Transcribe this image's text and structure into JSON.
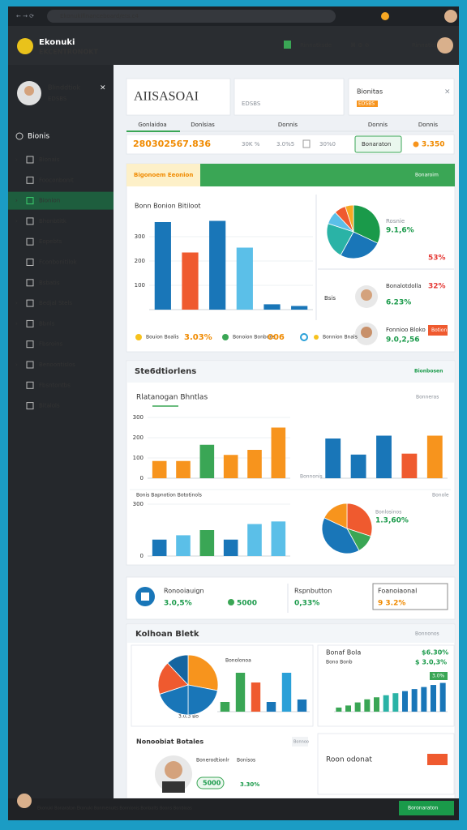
{
  "browser": {
    "address": "Ekonukifinanceboard/ets.c4"
  },
  "header": {
    "brand": "Ekonuki",
    "brand_sub": "EKCENTRONOKT",
    "nav_item": "Rinnatksde"
  },
  "sidebar": {
    "profile_name": "Blinddtiok",
    "profile_role": "EDSBS",
    "section": "Bionis",
    "items": [
      "Bionais",
      "Fooconbonit",
      "Bionion",
      "Bhonbtitk",
      "Eopebts",
      "Fconbonitilok",
      "Bsbatis",
      "Bedjal Stels",
      "Bbnls",
      "Fbsroins",
      "Benoontislos",
      "Fbsntontbs",
      "Bitalols"
    ]
  },
  "top": {
    "title": "AIISASOAI",
    "title_sub": "EDSBS",
    "card_title": "Bionitas",
    "card_sub": "EDSBS",
    "tabs": [
      "Gonlaidoa",
      "Donlsias",
      "Donnis",
      "Donnis",
      "Donnis"
    ],
    "total": "280302567.836",
    "stats": [
      "30K %",
      "3.0%5",
      "30%0"
    ],
    "button": "Bonaraton",
    "extra": "3.350"
  },
  "overview": {
    "tag": "Bigonoem Eeonion",
    "action": "Bonaroim",
    "chart_title": "Bonn Bonion Bitiloot",
    "pie_label": "Rosnie",
    "pie_value": "9.1,6%",
    "pie_change": "53%",
    "row1": {
      "label": "Bsis",
      "name": "Bonalotdolla",
      "value": "6.23%",
      "change": "32%"
    },
    "row2": {
      "name": "Fonnioo Bloko",
      "value": "9.0,2,56",
      "button": "Botion"
    },
    "legend": [
      "Bouion Boalis",
      "3.03%",
      "Bonoion Bonbons",
      "006",
      "Bonnion Bnals"
    ]
  },
  "statistics": {
    "title": "Ste6dtiorlens",
    "action": "Bionbosen",
    "subtitle": "Rlatanogan Bhntlas",
    "subtitle_action": "Bonneras",
    "side_label": "Bonnonis",
    "row_title": "Bonis Bapnotion Bototinols",
    "row_action": "Bonole",
    "pie_label": "Bonlosinos",
    "pie_value": "1.3,60%"
  },
  "kpis": [
    {
      "label": "Ronooiauign",
      "value": "3.0,5%",
      "extra": "5000"
    },
    {
      "label": "Rspnbutton",
      "value": "0,33%"
    },
    {
      "label": "Foanoiaonal",
      "value": "9 3.2%"
    }
  ],
  "bottom": {
    "title": "Kolhoan Bletk",
    "action": "Bonnonos",
    "bar_label": "Bonolonoa",
    "pie_caption": "3.0,3 Bo",
    "side_title": "Bonaf Bola",
    "side_sub": "Bono Bonb",
    "side_value": "$6.30%",
    "side_value2": "$ 3.0,3%",
    "side_pill": "3.0%",
    "list_title": "Nonoobiat Botales",
    "list_action": "Bonnoo",
    "person_name": "Bonerodtionlr",
    "person_role": "Bonisos",
    "person_pill": "5000",
    "person_value": "3.30%",
    "card_title": "Roon odonat"
  },
  "footer": {
    "text": "Ekonuki Bonaraton Ekonuki Bonmenuits Bonnionis Bonbalts Boons Bonbioas",
    "button": "Boronaraton"
  },
  "charts": [
    {
      "type": "bar",
      "values": [
        360,
        235,
        365,
        255,
        22,
        15
      ],
      "colors": [
        "#1976b8",
        "#ef5a2f",
        "#1976b8",
        "#5bbfe8",
        "#1976b8",
        "#1976b8"
      ],
      "ylim": [
        0,
        400
      ],
      "yticks": [
        100,
        200,
        300
      ]
    },
    {
      "type": "pie",
      "values": [
        32,
        26,
        22,
        8,
        7,
        5
      ],
      "colors": [
        "#1a9a4a",
        "#1976b8",
        "#2ab3a6",
        "#5bbfe8",
        "#ef5a2f",
        "#f7a823"
      ]
    },
    {
      "type": "bar",
      "values": [
        85,
        85,
        165,
        115,
        140,
        250
      ],
      "colors": [
        "#f7941d",
        "#f7941d",
        "#3aa655",
        "#f7941d",
        "#f7941d",
        "#f7941d"
      ],
      "ylim": [
        0,
        300
      ],
      "yticks": [
        0,
        100,
        200,
        300
      ]
    },
    {
      "type": "bar",
      "values": [
        210,
        125,
        225,
        130,
        225
      ],
      "colors": [
        "#1976b8",
        "#1976b8",
        "#1976b8",
        "#ef5a2f",
        "#f7941d"
      ],
      "ylim": [
        0,
        300
      ]
    },
    {
      "type": "bar",
      "values": [
        95,
        120,
        150,
        95,
        185,
        200
      ],
      "colors": [
        "#1976b8",
        "#5bbfe8",
        "#3aa655",
        "#1976b8",
        "#5bbfe8",
        "#5bbfe8"
      ],
      "ylim": [
        0,
        300
      ],
      "yticks": [
        0,
        300
      ]
    },
    {
      "type": "pie",
      "values": [
        30,
        12,
        40,
        18
      ],
      "colors": [
        "#ef5a2f",
        "#3aa655",
        "#1976b8",
        "#f7941d"
      ]
    },
    {
      "type": "pie",
      "values": [
        28,
        22,
        20,
        18,
        12
      ],
      "colors": [
        "#f7941d",
        "#1976b8",
        "#1976b8",
        "#ef5a2f",
        "#1565a0"
      ]
    },
    {
      "type": "bar",
      "values": [
        20,
        80,
        60,
        20,
        80,
        25
      ],
      "colors": [
        "#3aa655",
        "#3aa655",
        "#ef5a2f",
        "#1976b8",
        "#2aa0d8",
        "#1976b8"
      ],
      "ylim": [
        0,
        100
      ]
    },
    {
      "type": "bar",
      "values": [
        4,
        6,
        9,
        12,
        14,
        16,
        18,
        20,
        22,
        24,
        26,
        28
      ],
      "colors": [
        "#3aa655",
        "#3aa655",
        "#3aa655",
        "#3aa655",
        "#3aa655",
        "#2ab3a6",
        "#2ab3a6",
        "#1976b8",
        "#1976b8",
        "#1976b8",
        "#1976b8",
        "#1976b8"
      ],
      "ylim": [
        0,
        30
      ]
    }
  ]
}
